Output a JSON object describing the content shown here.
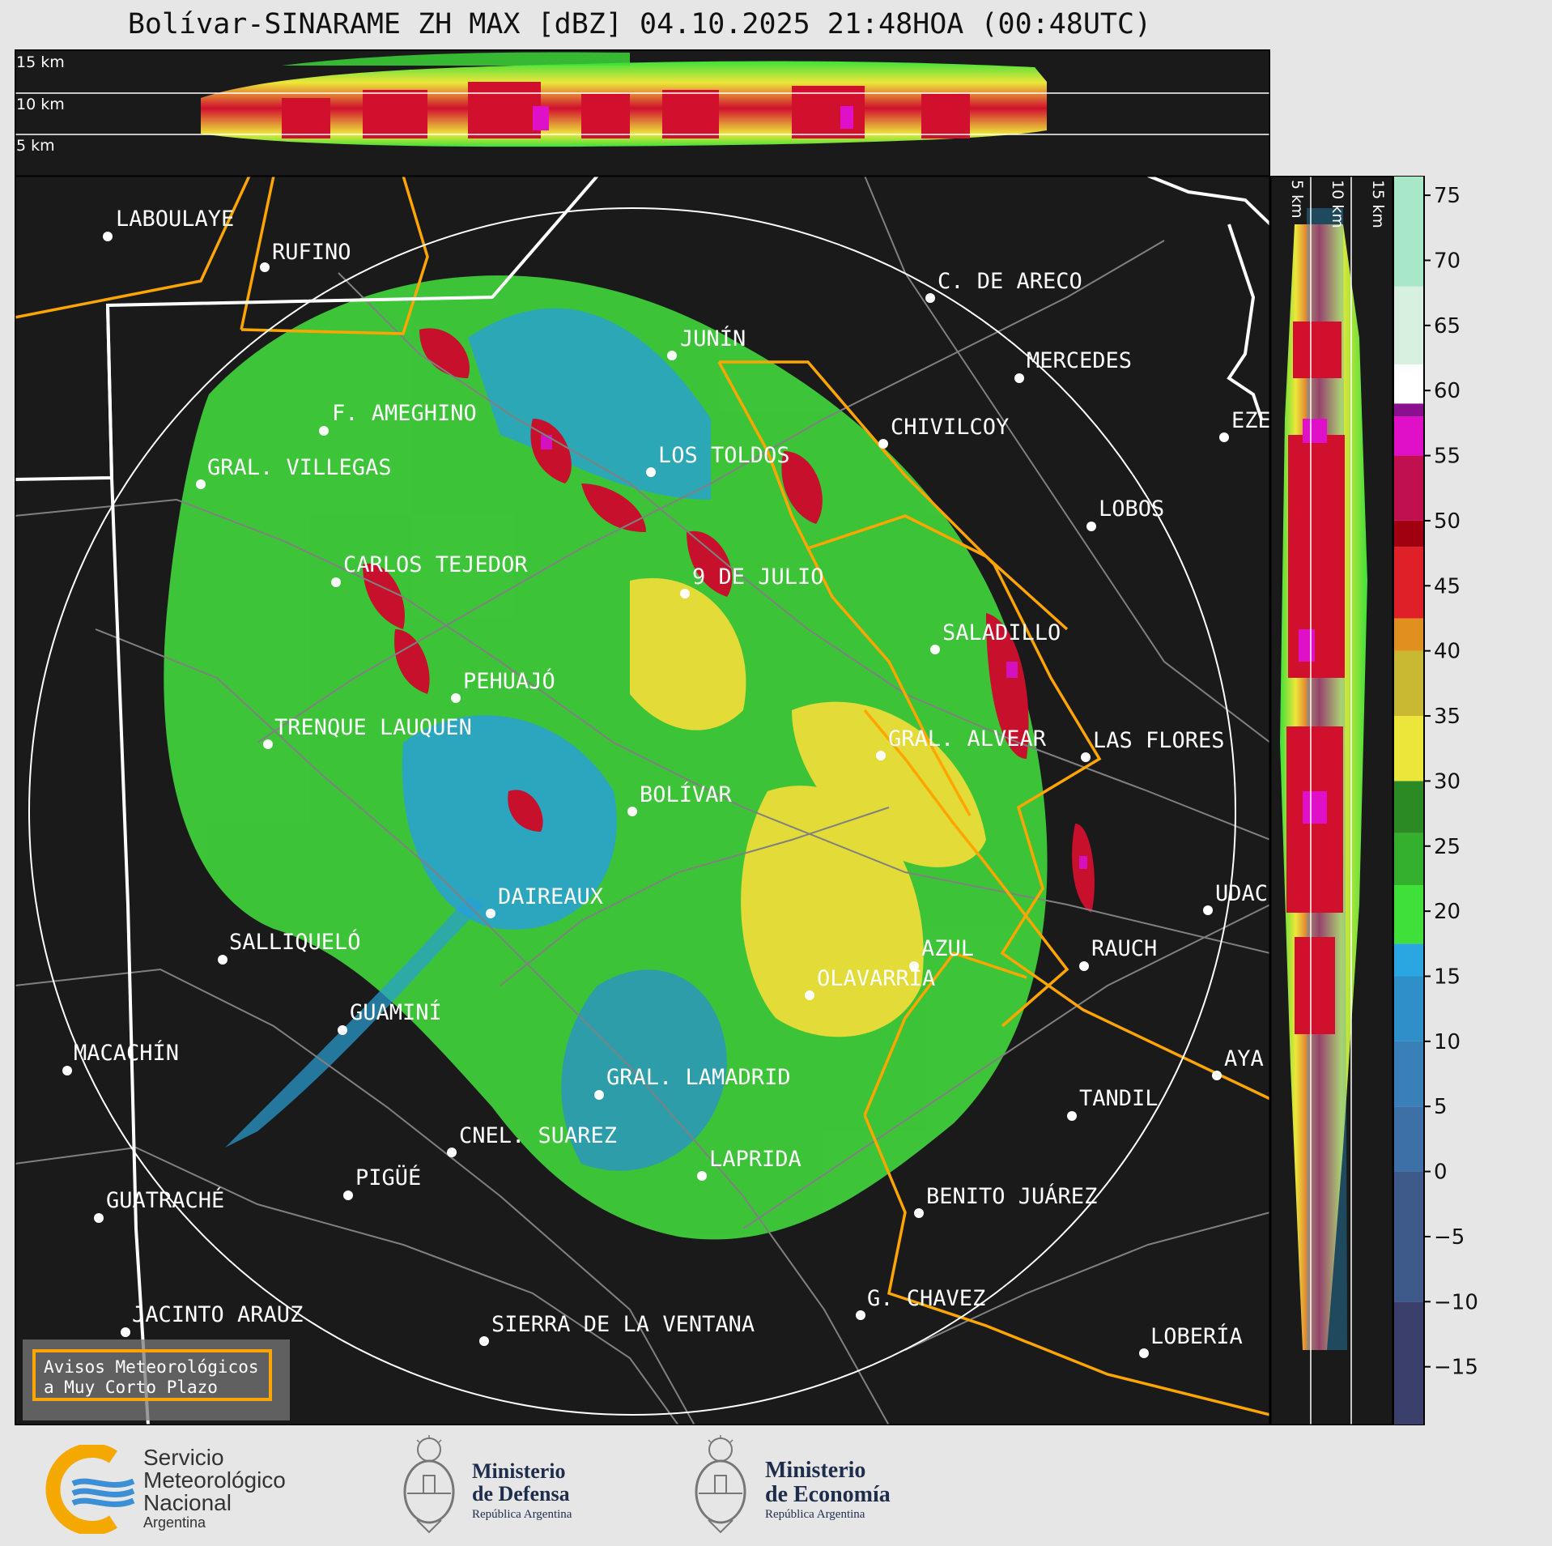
{
  "title": "Bolívar-SINARAME ZH MAX [dBZ] 04.10.2025 21:48HOA (00:48UTC)",
  "top_panel": {
    "height_labels": [
      "15 km",
      "10 km",
      "5 km"
    ]
  },
  "side_panel": {
    "height_labels": [
      "5 km",
      "10 km",
      "15 km"
    ]
  },
  "colorbar": {
    "ticks": [
      "75",
      "70",
      "65",
      "60",
      "55",
      "50",
      "45",
      "40",
      "35",
      "30",
      "25",
      "20",
      "15",
      "10",
      "5",
      "0",
      "−5",
      "−10",
      "−15"
    ],
    "tick_values": [
      75,
      70,
      65,
      60,
      55,
      50,
      45,
      40,
      35,
      30,
      25,
      20,
      15,
      10,
      5,
      0,
      -5,
      -10,
      -15
    ],
    "range": [
      -19.5,
      76.5
    ],
    "colors": {
      "accent_dbz_15": "#2aa7e0",
      "accent_dbz_20": "#3fe03a",
      "accent_dbz_30": "#ede63a",
      "accent_dbz_45": "#d1102e",
      "accent_dbz_55": "#e010c8"
    }
  },
  "cities": [
    {
      "name": "LABOULAYE"
    },
    {
      "name": "RUFINO"
    },
    {
      "name": "C. DE ARECO"
    },
    {
      "name": "JUNÍN"
    },
    {
      "name": "MERCEDES"
    },
    {
      "name": "F. AMEGHINO"
    },
    {
      "name": "CHIVILCOY"
    },
    {
      "name": "EZE"
    },
    {
      "name": "GRAL. VILLEGAS"
    },
    {
      "name": "LOS TOLDOS"
    },
    {
      "name": "LOBOS"
    },
    {
      "name": "CARLOS TEJEDOR"
    },
    {
      "name": "9 DE JULIO"
    },
    {
      "name": "SALADILLO"
    },
    {
      "name": "PEHUAJÓ"
    },
    {
      "name": "TRENQUE LAUQUEN"
    },
    {
      "name": "GRAL. ALVEAR"
    },
    {
      "name": "LAS FLORES"
    },
    {
      "name": "BOLÍVAR"
    },
    {
      "name": "DAIREAUX"
    },
    {
      "name": "UDAC"
    },
    {
      "name": "SALLIQUELÓ"
    },
    {
      "name": "AZUL"
    },
    {
      "name": "RAUCH"
    },
    {
      "name": "OLAVARRÍA"
    },
    {
      "name": "GUAMINÍ"
    },
    {
      "name": "MACACHÍN"
    },
    {
      "name": "AYA"
    },
    {
      "name": "GRAL. LAMADRID"
    },
    {
      "name": "TANDIL"
    },
    {
      "name": "CNEL. SUAREZ"
    },
    {
      "name": "LAPRIDA"
    },
    {
      "name": "PIGÜÉ"
    },
    {
      "name": "GUATRACHÉ"
    },
    {
      "name": "BENITO JUÁREZ"
    },
    {
      "name": "G. CHAVEZ"
    },
    {
      "name": "JACINTO ARAUZ"
    },
    {
      "name": "SIERRA DE LA VENTANA"
    },
    {
      "name": "LOBERÍA"
    }
  ],
  "warning_box": {
    "line1": "Avisos Meteorológicos",
    "line2": "a Muy Corto Plazo"
  },
  "logos": {
    "smn": {
      "line1": "Servicio",
      "line2": "Meteorológico",
      "line3": "Nacional",
      "line4": "Argentina"
    },
    "defensa": {
      "line1": "Ministerio",
      "line2": "de Defensa",
      "line3": "República Argentina"
    },
    "economia": {
      "line1": "Ministerio",
      "line2": "de Economía",
      "line3": "República Argentina"
    }
  },
  "colors": {
    "map_background": "#1a1a1a",
    "province_border": "#ffffff",
    "district_border": "#808080",
    "alert_zone_border": "#ffa500",
    "smn_orange": "#f5a800",
    "smn_blue": "#3b8fd6"
  }
}
